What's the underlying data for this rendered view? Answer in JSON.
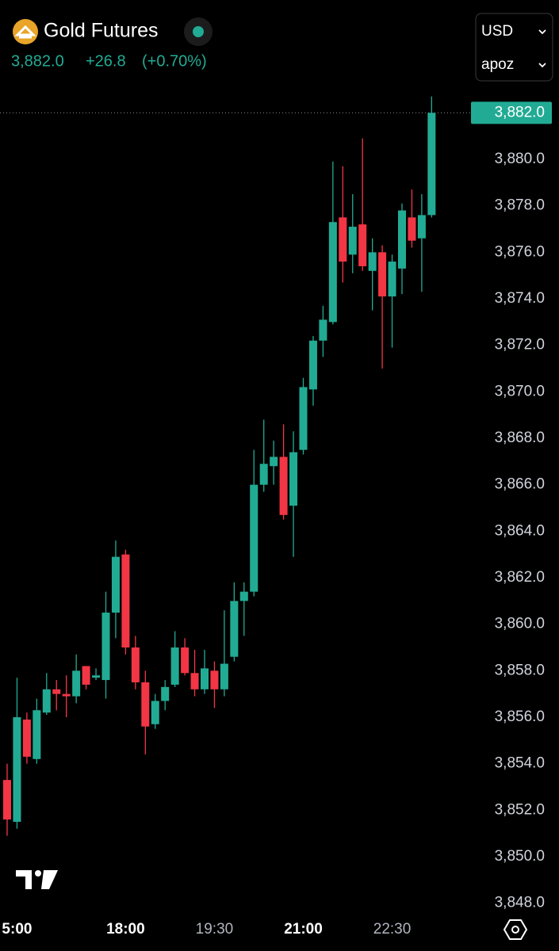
{
  "header": {
    "title": "Gold Futures",
    "price": "3,882.0",
    "change": "+26.8",
    "change_pct": "(+0.70%)",
    "currency": "USD",
    "selector": "apoz"
  },
  "chart_data": {
    "type": "candlestick",
    "categories": [
      null,
      "5:00",
      null,
      null,
      null,
      null,
      null,
      null,
      null,
      null,
      null,
      null,
      "18:00",
      null,
      null,
      null,
      null,
      null,
      null,
      null,
      null,
      "19:30",
      null,
      null,
      null,
      null,
      null,
      null,
      null,
      null,
      "21:00",
      null,
      null,
      null,
      null,
      null,
      null,
      null,
      null,
      "22:30",
      null,
      null,
      null,
      null
    ],
    "open": [
      3853.3,
      3851.5,
      3855.9,
      3854.2,
      3856.2,
      3857.2,
      3857.0,
      3856.9,
      3858.2,
      3857.7,
      3857.6,
      3860.5,
      3863.0,
      3859.0,
      3857.5,
      3855.7,
      3856.7,
      3857.4,
      3859.0,
      3857.9,
      3857.2,
      3858.0,
      3857.2,
      3858.6,
      3861.0,
      3861.4,
      3866.0,
      3866.8,
      3867.2,
      3865.1,
      3867.5,
      3870.1,
      3872.2,
      3873.0,
      3877.5,
      3875.9,
      3877.2,
      3875.2,
      3876.0,
      3874.1,
      3875.3,
      3877.5,
      3876.6,
      3877.6
    ],
    "high": [
      3854.0,
      3857.7,
      3856.2,
      3856.8,
      3857.9,
      3857.6,
      3857.8,
      3858.7,
      3858.2,
      3858.1,
      3861.4,
      3863.6,
      3863.2,
      3859.5,
      3858.0,
      3857.0,
      3857.6,
      3859.7,
      3859.4,
      3858.9,
      3858.9,
      3858.4,
      3860.6,
      3861.8,
      3861.8,
      3867.5,
      3868.8,
      3867.9,
      3868.6,
      3868.3,
      3870.6,
      3872.4,
      3873.7,
      3879.9,
      3879.7,
      3878.5,
      3880.9,
      3876.6,
      3876.3,
      3875.9,
      3878.1,
      3878.7,
      3878.5,
      3882.7
    ],
    "low": [
      3850.9,
      3851.2,
      3854.0,
      3854.0,
      3856.1,
      3856.3,
      3856.0,
      3856.6,
      3857.2,
      3857.6,
      3856.8,
      3859.4,
      3858.7,
      3857.2,
      3854.4,
      3855.5,
      3856.3,
      3857.3,
      3857.8,
      3856.9,
      3857.0,
      3856.4,
      3856.9,
      3858.4,
      3859.5,
      3861.2,
      3865.7,
      3866.0,
      3864.5,
      3862.9,
      3867.3,
      3869.4,
      3871.5,
      3872.9,
      3874.7,
      3875.1,
      3875.2,
      3873.5,
      3871.0,
      3871.9,
      3874.2,
      3876.2,
      3874.3,
      3877.5
    ],
    "close": [
      3851.6,
      3856.0,
      3854.3,
      3856.3,
      3857.2,
      3857.0,
      3856.9,
      3858.0,
      3857.4,
      3857.8,
      3860.5,
      3862.9,
      3859.0,
      3857.5,
      3855.6,
      3856.7,
      3857.3,
      3859.0,
      3857.9,
      3857.2,
      3858.1,
      3857.2,
      3858.3,
      3861.0,
      3861.4,
      3866.0,
      3866.9,
      3867.2,
      3864.7,
      3867.4,
      3870.2,
      3872.2,
      3873.1,
      3877.3,
      3875.6,
      3877.1,
      3875.4,
      3876.0,
      3874.1,
      3875.6,
      3877.8,
      3876.5,
      3877.6,
      3882.0
    ],
    "up_color": "#22ab94",
    "down_color": "#f23645",
    "ylim": [
      3847,
      3883
    ],
    "yticks": [
      {
        "value": 3848,
        "label": "3,848.0"
      },
      {
        "value": 3850,
        "label": "3,850.0"
      },
      {
        "value": 3852,
        "label": "3,852.0"
      },
      {
        "value": 3854,
        "label": "3,854.0"
      },
      {
        "value": 3856,
        "label": "3,856.0"
      },
      {
        "value": 3858,
        "label": "3,858.0"
      },
      {
        "value": 3860,
        "label": "3,860.0"
      },
      {
        "value": 3862,
        "label": "3,862.0"
      },
      {
        "value": 3864,
        "label": "3,864.0"
      },
      {
        "value": 3866,
        "label": "3,866.0"
      },
      {
        "value": 3868,
        "label": "3,868.0"
      },
      {
        "value": 3870,
        "label": "3,870.0"
      },
      {
        "value": 3872,
        "label": "3,872.0"
      },
      {
        "value": 3874,
        "label": "3,874.0"
      },
      {
        "value": 3876,
        "label": "3,876.0"
      },
      {
        "value": 3878,
        "label": "3,878.0"
      },
      {
        "value": 3880,
        "label": "3,880.0"
      }
    ],
    "last_price": {
      "value": 3882,
      "label": "3,882.0"
    },
    "grid": false
  }
}
